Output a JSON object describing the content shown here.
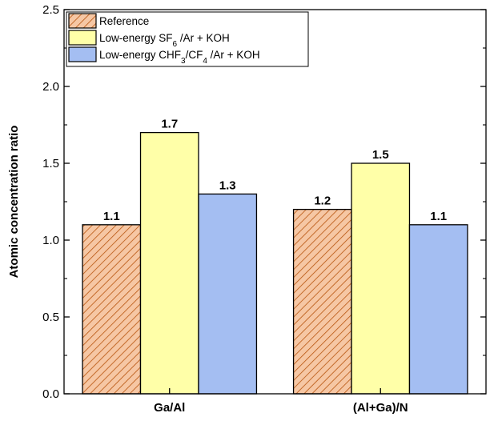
{
  "chart_data": {
    "type": "bar",
    "title": "",
    "xlabel": "",
    "ylabel": "Atomic concentration ratio",
    "categories": [
      "Ga/Al",
      "(Al+Ga)/N"
    ],
    "ylim": [
      0.0,
      2.5
    ],
    "yticks": [
      "0.0",
      "0.5",
      "1.0",
      "1.5",
      "2.0",
      "2.5"
    ],
    "grid": false,
    "legend_position": "top-left",
    "series": [
      {
        "name": "Reference",
        "values": [
          1.1,
          1.2
        ],
        "labels": [
          "1.1",
          "1.2"
        ],
        "color": "#f6c7a4",
        "hatch": "#b8550f",
        "pattern": "diagonal-hatch"
      },
      {
        "name": "Low-energy SF6 /Ar + KOH",
        "values": [
          1.7,
          1.5
        ],
        "labels": [
          "1.7",
          "1.5"
        ],
        "color": "#ffffa8"
      },
      {
        "name": "Low-energy CHF3/CF4 /Ar + KOH",
        "values": [
          1.3,
          1.1
        ],
        "labels": [
          "1.3",
          "1.1"
        ],
        "color": "#a4bef2"
      }
    ]
  }
}
